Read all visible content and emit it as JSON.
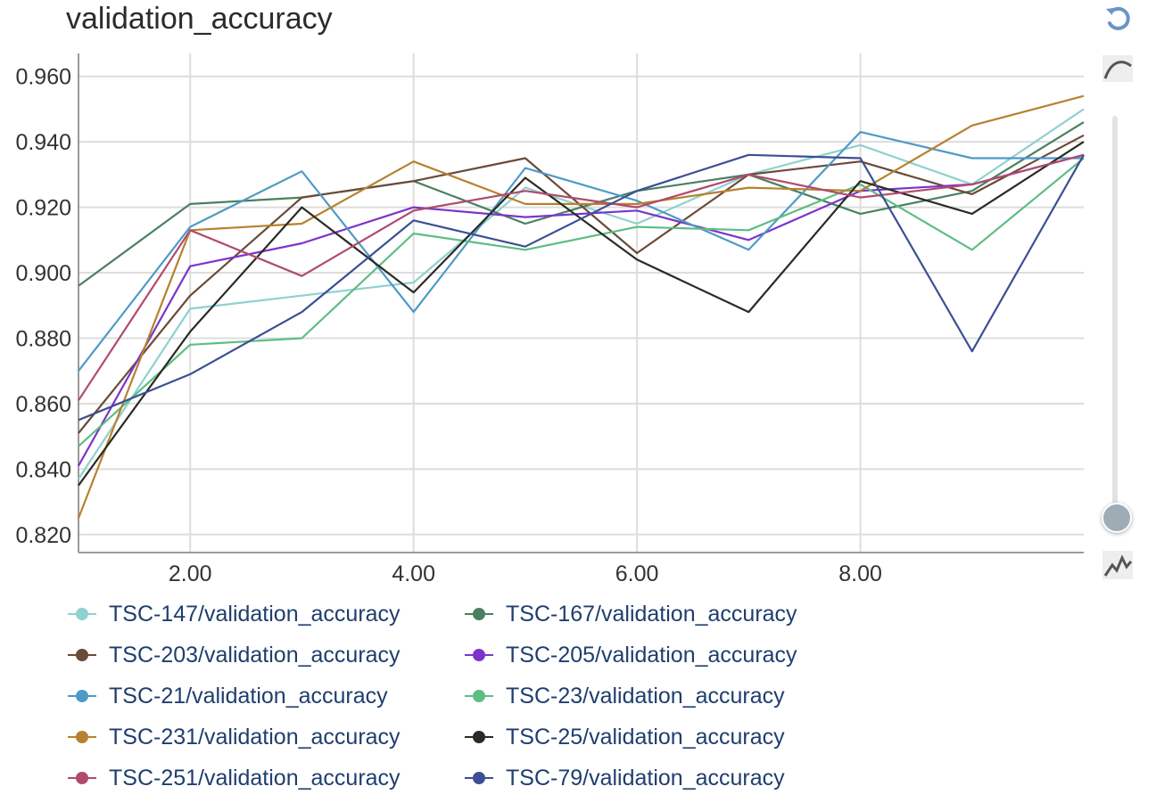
{
  "title": "validation_accuracy",
  "icons": {
    "reset": "reset-icon",
    "smooth": "smoothing-curve-icon",
    "raw": "raw-line-icon",
    "slider": "smoothing-slider"
  },
  "smoothing_level": 0,
  "chart_data": {
    "type": "line",
    "title": "validation_accuracy",
    "xlabel": "",
    "ylabel": "",
    "xlim": [
      1,
      10
    ],
    "ylim": [
      0.8145,
      0.967
    ],
    "x_ticks": [
      2,
      4,
      6,
      8
    ],
    "x_tick_labels": [
      "2.00",
      "4.00",
      "6.00",
      "8.00"
    ],
    "y_ticks": [
      0.82,
      0.84,
      0.86,
      0.88,
      0.9,
      0.92,
      0.94,
      0.96
    ],
    "y_tick_labels": [
      "0.820",
      "0.840",
      "0.860",
      "0.880",
      "0.900",
      "0.920",
      "0.940",
      "0.960"
    ],
    "grid": true,
    "legend_position": "bottom",
    "x": [
      1,
      2,
      3,
      4,
      5,
      6,
      7,
      8,
      9,
      10
    ],
    "series": [
      {
        "name": "TSC-147/validation_accuracy",
        "color": "#8fd1cf",
        "values": [
          0.837,
          0.889,
          0.893,
          0.897,
          0.926,
          0.915,
          0.93,
          0.939,
          0.927,
          0.95
        ]
      },
      {
        "name": "TSC-167/validation_accuracy",
        "color": "#4a8060",
        "values": [
          0.896,
          0.921,
          0.923,
          0.928,
          0.915,
          0.925,
          0.93,
          0.918,
          0.925,
          0.946
        ]
      },
      {
        "name": "TSC-203/validation_accuracy",
        "color": "#6a4a38",
        "values": [
          0.851,
          0.893,
          0.923,
          0.928,
          0.935,
          0.906,
          0.93,
          0.934,
          0.924,
          0.942
        ]
      },
      {
        "name": "TSC-205/validation_accuracy",
        "color": "#7b35c9",
        "values": [
          0.841,
          0.902,
          0.909,
          0.92,
          0.917,
          0.919,
          0.91,
          0.925,
          0.927,
          0.936
        ]
      },
      {
        "name": "TSC-21/validation_accuracy",
        "color": "#4d9ac7",
        "values": [
          0.87,
          0.914,
          0.931,
          0.888,
          0.932,
          0.922,
          0.907,
          0.943,
          0.935,
          0.935
        ]
      },
      {
        "name": "TSC-23/validation_accuracy",
        "color": "#5dbd83",
        "values": [
          0.847,
          0.878,
          0.88,
          0.912,
          0.907,
          0.914,
          0.913,
          0.927,
          0.907,
          0.935
        ]
      },
      {
        "name": "TSC-231/validation_accuracy",
        "color": "#b7812e",
        "values": [
          0.825,
          0.913,
          0.915,
          0.934,
          0.921,
          0.921,
          0.926,
          0.925,
          0.945,
          0.954
        ]
      },
      {
        "name": "TSC-25/validation_accuracy",
        "color": "#2b2a24",
        "values": [
          0.835,
          0.882,
          0.92,
          0.894,
          0.929,
          0.904,
          0.888,
          0.928,
          0.918,
          0.94
        ]
      },
      {
        "name": "TSC-251/validation_accuracy",
        "color": "#b04a6e",
        "values": [
          0.861,
          0.913,
          0.899,
          0.919,
          0.925,
          0.92,
          0.93,
          0.923,
          0.927,
          0.936
        ]
      },
      {
        "name": "TSC-79/validation_accuracy",
        "color": "#3c4f94",
        "values": [
          0.855,
          0.869,
          0.888,
          0.916,
          0.908,
          0.925,
          0.936,
          0.935,
          0.876,
          0.936
        ]
      }
    ]
  }
}
